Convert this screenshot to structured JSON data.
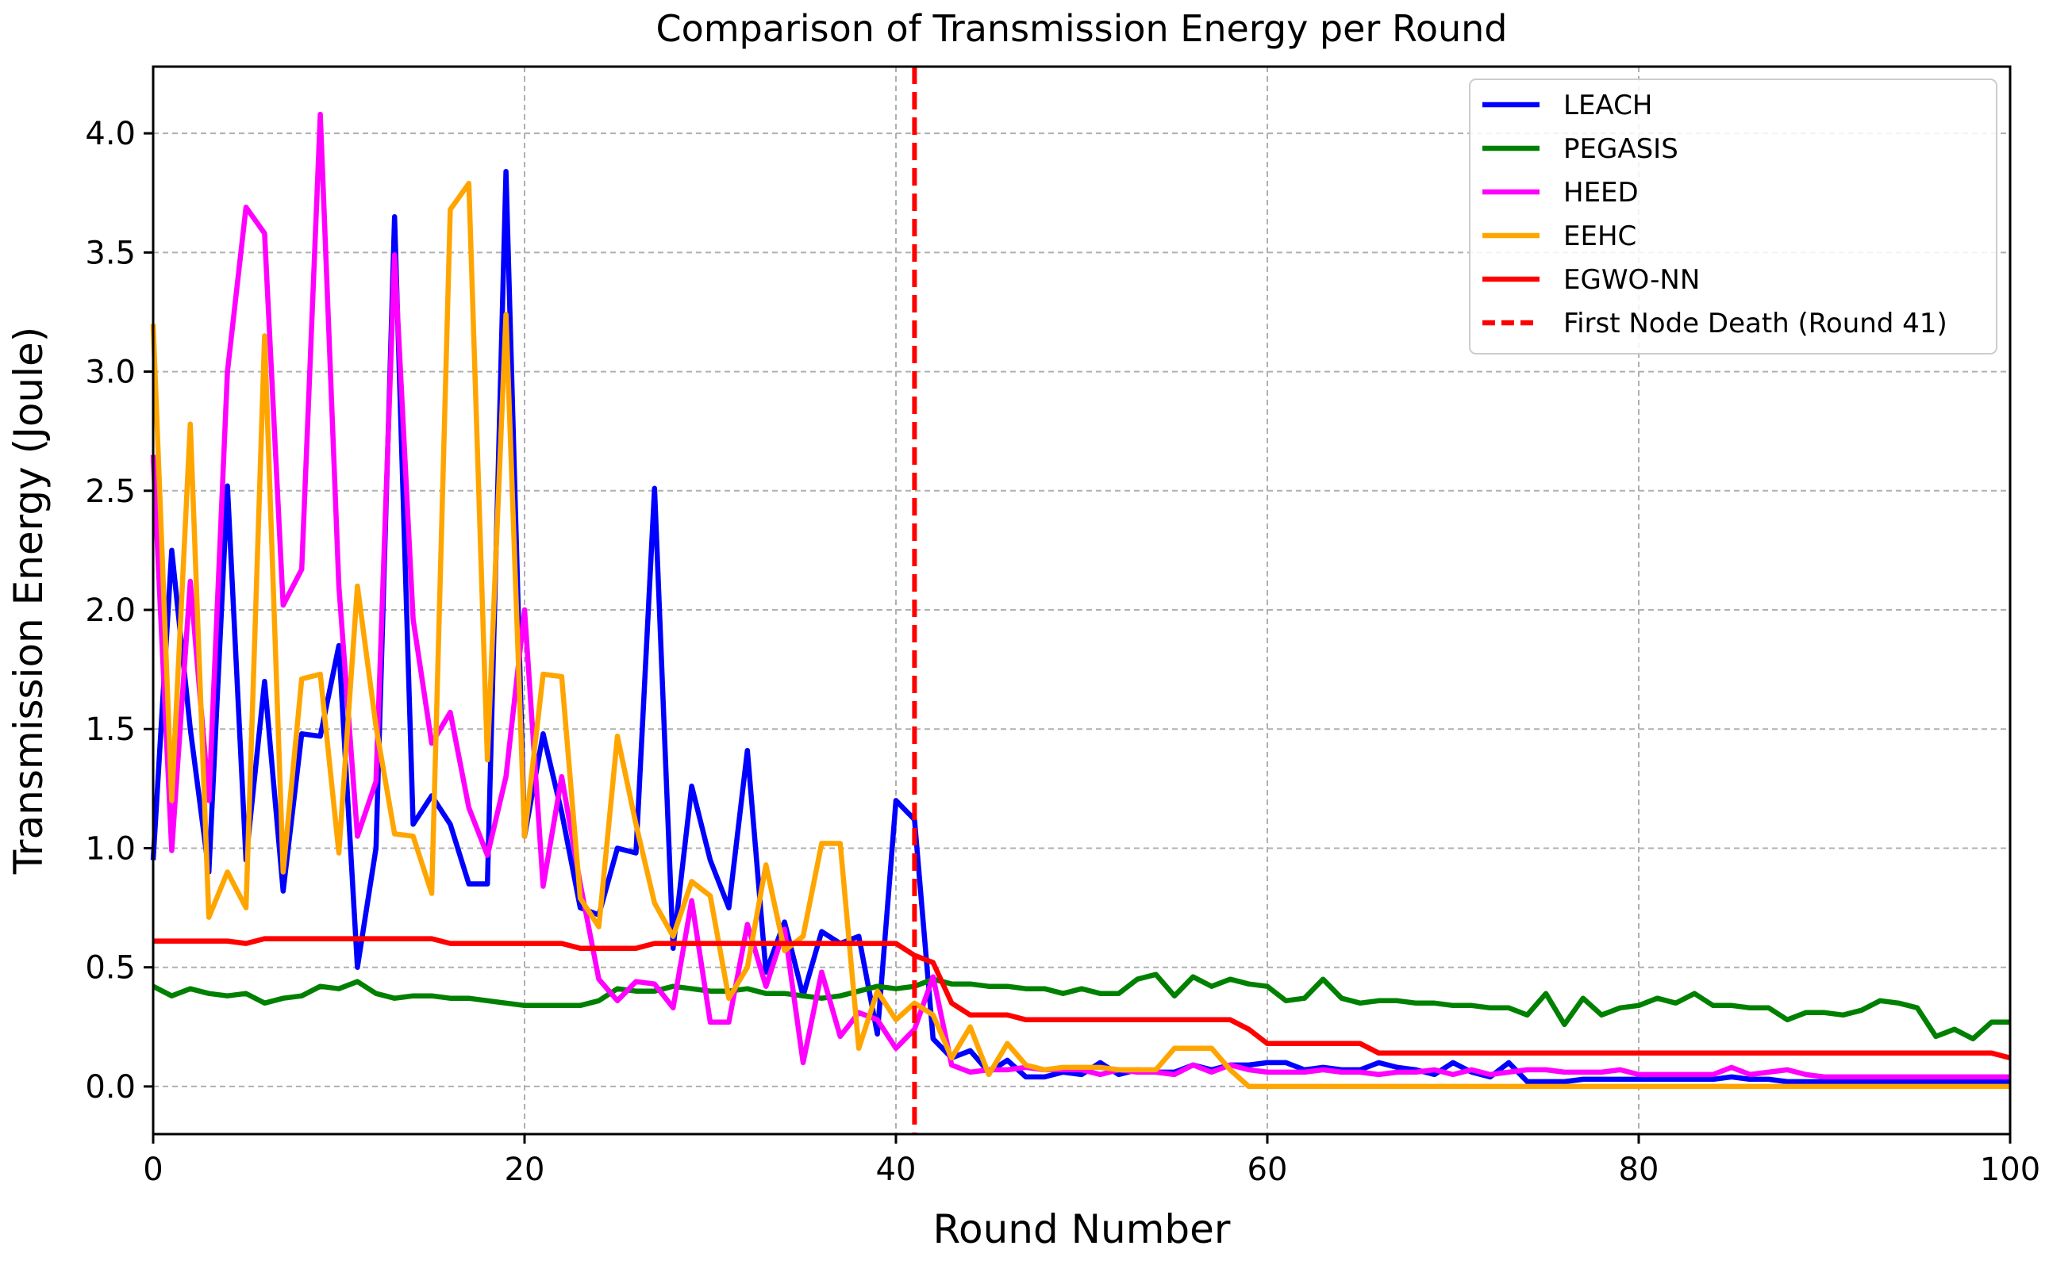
{
  "chart_data": {
    "type": "line",
    "title": "Comparison of Transmission Energy per Round",
    "xlabel": "Round Number",
    "ylabel": "Transmission Energy (Joule)",
    "xlim": [
      0,
      100
    ],
    "ylim": [
      -0.2,
      4.28
    ],
    "xticks": [
      0,
      20,
      40,
      60,
      80,
      100
    ],
    "xtick_labels": [
      "0",
      "20",
      "40",
      "60",
      "80",
      "100"
    ],
    "yticks": [
      0,
      0.5,
      1,
      1.5,
      2,
      2.5,
      3,
      3.5,
      4
    ],
    "ytick_labels": [
      "0.0",
      "0.5",
      "1.0",
      "1.5",
      "2.0",
      "2.5",
      "3.0",
      "3.5",
      "4.0"
    ],
    "grid": true,
    "legend_position": "top-right",
    "series": [
      {
        "name": "LEACH",
        "color": "#0000ff",
        "values": [
          0.95,
          2.25,
          1.5,
          0.9,
          2.52,
          0.95,
          1.7,
          0.82,
          1.48,
          1.47,
          1.85,
          0.5,
          1.0,
          3.65,
          1.1,
          1.22,
          1.1,
          0.85,
          0.85,
          3.84,
          1.05,
          1.48,
          1.15,
          0.75,
          0.72,
          1.0,
          0.98,
          2.51,
          0.58,
          1.26,
          0.95,
          0.75,
          1.41,
          0.48,
          0.69,
          0.38,
          0.65,
          0.6,
          0.63,
          0.22,
          1.2,
          1.12,
          0.2,
          0.12,
          0.15,
          0.06,
          0.11,
          0.04,
          0.04,
          0.06,
          0.05,
          0.1,
          0.05,
          0.07,
          0.06,
          0.06,
          0.09,
          0.07,
          0.09,
          0.09,
          0.1,
          0.1,
          0.07,
          0.08,
          0.07,
          0.07,
          0.1,
          0.08,
          0.07,
          0.05,
          0.1,
          0.06,
          0.04,
          0.1,
          0.02,
          0.02,
          0.02,
          0.03,
          0.03,
          0.03,
          0.03,
          0.03,
          0.03,
          0.03,
          0.03,
          0.04,
          0.03,
          0.03,
          0.02,
          0.02,
          0.02,
          0.02,
          0.02,
          0.02,
          0.02,
          0.02,
          0.02,
          0.02,
          0.02,
          0.02,
          0.02
        ]
      },
      {
        "name": "PEGASIS",
        "color": "#008000",
        "values": [
          0.42,
          0.38,
          0.41,
          0.39,
          0.38,
          0.39,
          0.35,
          0.37,
          0.38,
          0.42,
          0.41,
          0.44,
          0.39,
          0.37,
          0.38,
          0.38,
          0.37,
          0.37,
          0.36,
          0.35,
          0.34,
          0.34,
          0.34,
          0.34,
          0.36,
          0.41,
          0.4,
          0.4,
          0.42,
          0.41,
          0.4,
          0.4,
          0.41,
          0.39,
          0.39,
          0.38,
          0.37,
          0.38,
          0.4,
          0.42,
          0.41,
          0.42,
          0.45,
          0.43,
          0.43,
          0.42,
          0.42,
          0.41,
          0.41,
          0.39,
          0.41,
          0.39,
          0.39,
          0.45,
          0.47,
          0.38,
          0.46,
          0.42,
          0.45,
          0.43,
          0.42,
          0.36,
          0.37,
          0.45,
          0.37,
          0.35,
          0.36,
          0.36,
          0.35,
          0.35,
          0.34,
          0.34,
          0.33,
          0.33,
          0.3,
          0.39,
          0.26,
          0.37,
          0.3,
          0.33,
          0.34,
          0.37,
          0.35,
          0.39,
          0.34,
          0.34,
          0.33,
          0.33,
          0.28,
          0.31,
          0.31,
          0.3,
          0.32,
          0.36,
          0.35,
          0.33,
          0.21,
          0.24,
          0.2,
          0.27,
          0.27
        ]
      },
      {
        "name": "HEED",
        "color": "#ff00ff",
        "values": [
          2.65,
          0.99,
          2.12,
          1.2,
          3.0,
          3.69,
          3.58,
          2.02,
          2.17,
          4.08,
          2.1,
          1.05,
          1.28,
          3.49,
          1.96,
          1.44,
          1.57,
          1.17,
          0.97,
          1.3,
          2.0,
          0.84,
          1.3,
          0.85,
          0.45,
          0.36,
          0.44,
          0.43,
          0.33,
          0.78,
          0.27,
          0.27,
          0.68,
          0.42,
          0.66,
          0.1,
          0.48,
          0.21,
          0.31,
          0.28,
          0.16,
          0.24,
          0.46,
          0.09,
          0.06,
          0.07,
          0.07,
          0.08,
          0.07,
          0.07,
          0.07,
          0.05,
          0.07,
          0.06,
          0.06,
          0.05,
          0.09,
          0.06,
          0.09,
          0.07,
          0.06,
          0.06,
          0.06,
          0.07,
          0.06,
          0.06,
          0.05,
          0.06,
          0.06,
          0.07,
          0.05,
          0.07,
          0.05,
          0.06,
          0.07,
          0.07,
          0.06,
          0.06,
          0.06,
          0.07,
          0.05,
          0.05,
          0.05,
          0.05,
          0.05,
          0.08,
          0.05,
          0.06,
          0.07,
          0.05,
          0.04,
          0.04,
          0.04,
          0.04,
          0.04,
          0.04,
          0.04,
          0.04,
          0.04,
          0.04,
          0.04
        ]
      },
      {
        "name": "EEHC",
        "color": "#ffa500",
        "values": [
          3.2,
          1.2,
          2.78,
          0.71,
          0.9,
          0.75,
          3.15,
          0.9,
          1.71,
          1.73,
          0.98,
          2.1,
          1.51,
          1.06,
          1.05,
          0.81,
          3.68,
          3.79,
          1.37,
          3.24,
          1.05,
          1.73,
          1.72,
          0.79,
          0.67,
          1.47,
          1.1,
          0.77,
          0.63,
          0.86,
          0.8,
          0.37,
          0.5,
          0.93,
          0.57,
          0.63,
          1.02,
          1.02,
          0.16,
          0.4,
          0.28,
          0.35,
          0.3,
          0.12,
          0.25,
          0.05,
          0.18,
          0.09,
          0.07,
          0.08,
          0.08,
          0.08,
          0.07,
          0.07,
          0.07,
          0.16,
          0.16,
          0.16,
          0.07,
          0.0,
          0.0,
          0.0,
          0.0,
          0.0,
          0.0,
          0.0,
          0.0,
          0.0,
          0.0,
          0.0,
          0.0,
          0.0,
          0.0,
          0.0,
          0.0,
          0.0,
          0.0,
          0.0,
          0.0,
          0.0,
          0.0,
          0.0,
          0.0,
          0.0,
          0.0,
          0.0,
          0.0,
          0.0,
          0.0,
          0.0,
          0.0,
          0.0,
          0.0,
          0.0,
          0.0,
          0.0,
          0.0,
          0.0,
          0.0,
          0.0,
          0.0
        ]
      },
      {
        "name": "EGWO-NN",
        "color": "#ff0000",
        "values": [
          0.61,
          0.61,
          0.61,
          0.61,
          0.61,
          0.6,
          0.62,
          0.62,
          0.62,
          0.62,
          0.62,
          0.62,
          0.62,
          0.62,
          0.62,
          0.62,
          0.6,
          0.6,
          0.6,
          0.6,
          0.6,
          0.6,
          0.6,
          0.58,
          0.58,
          0.58,
          0.58,
          0.6,
          0.6,
          0.6,
          0.6,
          0.6,
          0.6,
          0.6,
          0.6,
          0.6,
          0.6,
          0.6,
          0.6,
          0.6,
          0.6,
          0.55,
          0.52,
          0.35,
          0.3,
          0.3,
          0.3,
          0.28,
          0.28,
          0.28,
          0.28,
          0.28,
          0.28,
          0.28,
          0.28,
          0.28,
          0.28,
          0.28,
          0.28,
          0.24,
          0.18,
          0.18,
          0.18,
          0.18,
          0.18,
          0.18,
          0.14,
          0.14,
          0.14,
          0.14,
          0.14,
          0.14,
          0.14,
          0.14,
          0.14,
          0.14,
          0.14,
          0.14,
          0.14,
          0.14,
          0.14,
          0.14,
          0.14,
          0.14,
          0.14,
          0.14,
          0.14,
          0.14,
          0.14,
          0.14,
          0.14,
          0.14,
          0.14,
          0.14,
          0.14,
          0.14,
          0.14,
          0.14,
          0.14,
          0.14,
          0.12
        ]
      }
    ],
    "vline": {
      "x": 41,
      "label": "First Node Death (Round 41)",
      "color": "#ff0000",
      "style": "dashed"
    }
  }
}
